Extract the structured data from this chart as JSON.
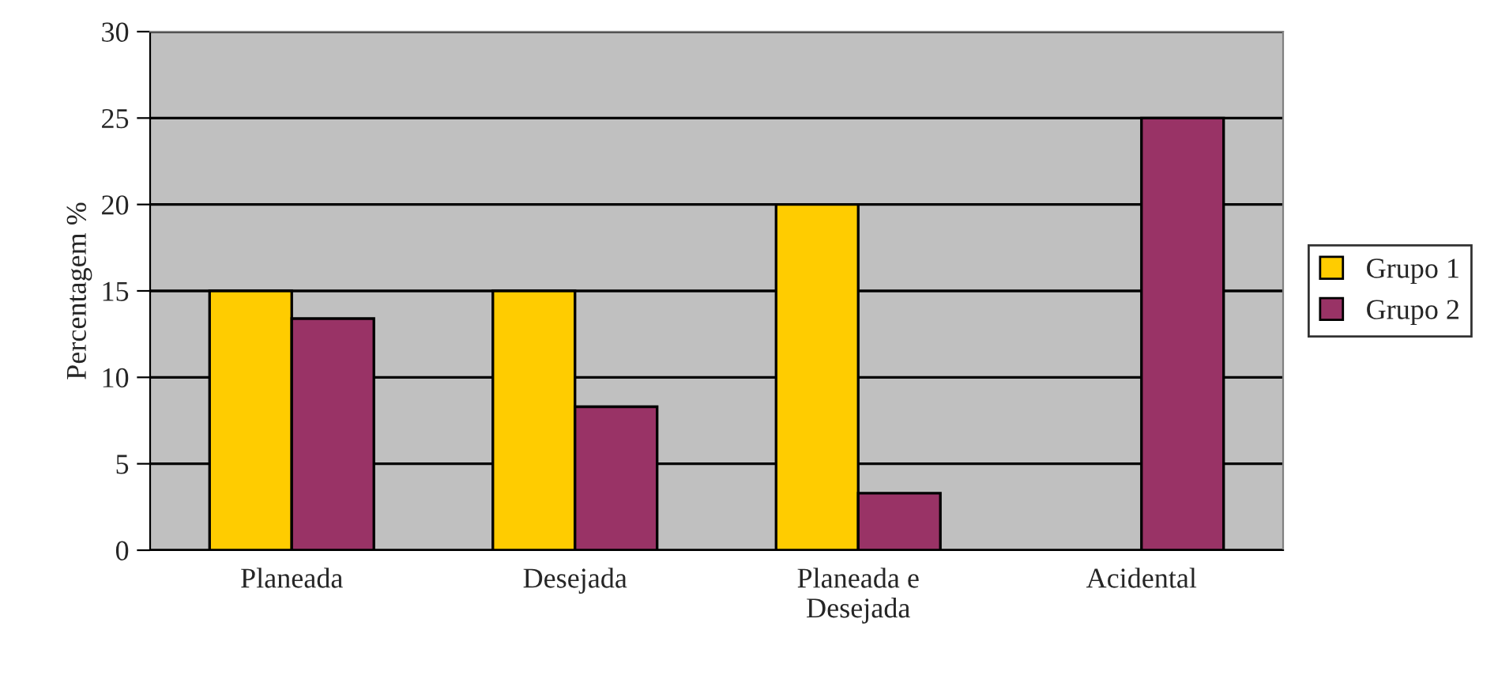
{
  "chart_data": {
    "type": "bar",
    "ylabel": "Percentagem %",
    "categories": [
      "Planeada",
      "Desejada",
      "Planeada e\nDesejada",
      "Acidental"
    ],
    "series": [
      {
        "name": "Grupo 1",
        "color": "#ffcc00",
        "values": [
          15,
          15,
          20,
          null
        ]
      },
      {
        "name": "Grupo 2",
        "color": "#993366",
        "values": [
          13.4,
          8.3,
          3.3,
          25
        ]
      }
    ],
    "ylim": [
      0,
      30
    ],
    "yticks": [
      0,
      5,
      10,
      15,
      20,
      25,
      30
    ],
    "grid": "y",
    "legend": "right"
  }
}
